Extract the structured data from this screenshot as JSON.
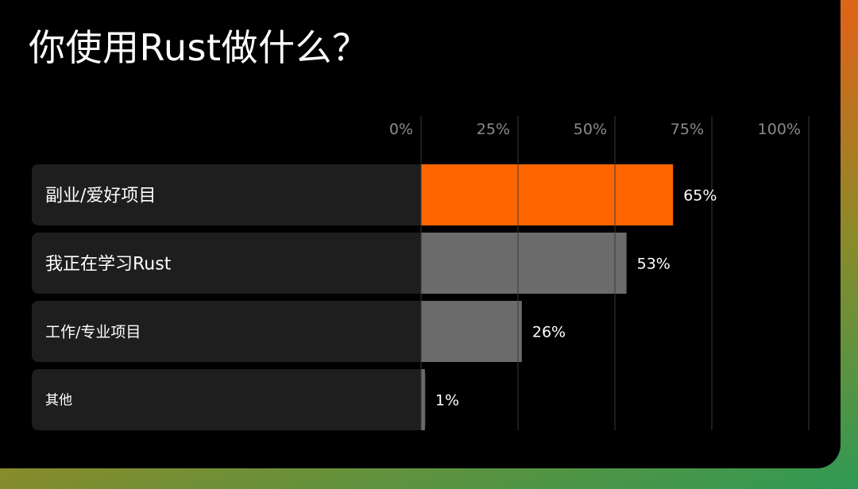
{
  "title": "你使用Rust做什么？",
  "colors": {
    "highlight": "#ff6600",
    "bar": "#6b6b6b",
    "track": "#1e1e1e",
    "grid": "#3a3a3a",
    "tick_text": "#8a8a8a",
    "text": "#ffffff",
    "background": "#000000"
  },
  "chart_data": {
    "type": "bar",
    "orientation": "horizontal",
    "categories": [
      "副业/爱好项目",
      "我正在学习Rust",
      "工作/专业项目",
      "其他"
    ],
    "values": [
      65,
      53,
      26,
      1
    ],
    "value_labels": [
      "65%",
      "53%",
      "26%",
      "1%"
    ],
    "highlight_index": 0,
    "xlim": [
      0,
      100
    ],
    "ticks": [
      0,
      25,
      50,
      75,
      100
    ],
    "tick_labels": [
      "0%",
      "25%",
      "50%",
      "75%",
      "100%"
    ],
    "grid": true,
    "title": "你使用Rust做什么？"
  }
}
